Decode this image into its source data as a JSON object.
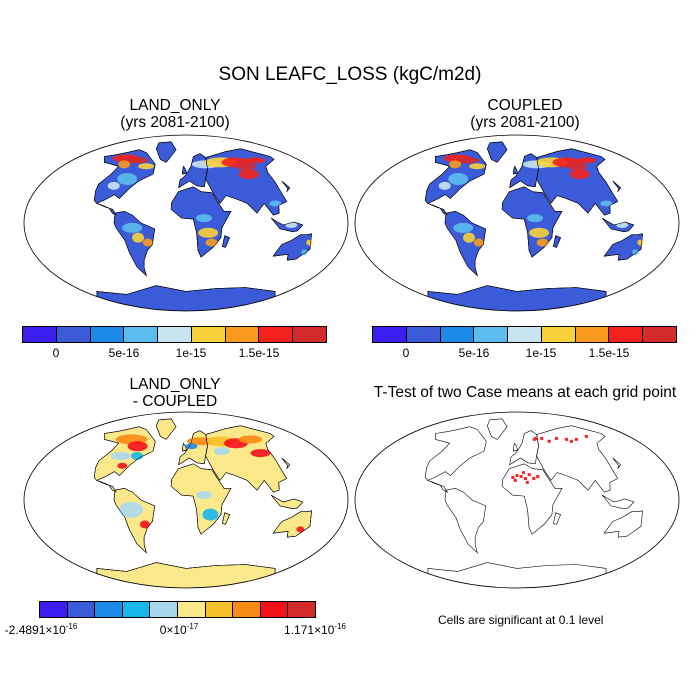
{
  "title": "SON LEAFC_LOSS (kgC/m2d)",
  "panels": {
    "land_only": {
      "line1": "LAND_ONLY",
      "line2": "(yrs 2081-2100)"
    },
    "coupled": {
      "line1": "COUPLED",
      "line2": "(yrs 2081-2100)"
    },
    "difference": {
      "line1": "LAND_ONLY",
      "line2": "- COUPLED"
    },
    "ttest": {
      "line1": "T-Test of two Case means at each grid point"
    }
  },
  "colorbar_top": {
    "colors": [
      "#3d1ef0",
      "#3b5bd8",
      "#1e8ae8",
      "#5cbcee",
      "#c8e4f0",
      "#f8d23c",
      "#f79a1e",
      "#f4211c",
      "#d42a2a"
    ],
    "labels": [
      "0",
      "5e-16",
      "1e-15",
      "1.5e-15"
    ]
  },
  "colorbar_diff": {
    "colors": [
      "#3d1ef0",
      "#3b5bd8",
      "#1e8ae8",
      "#16b8ec",
      "#a8d8ee",
      "#fbe88a",
      "#f8c028",
      "#f78a14",
      "#f4111a",
      "#d42a2a"
    ],
    "labels": [
      {
        "base": "-2.4891×10",
        "exp": "-16"
      },
      {
        "base": "0×10",
        "exp": "-17"
      },
      {
        "base": "1.171×10",
        "exp": "-16"
      }
    ]
  },
  "significance_note": "Cells are significant at 0.1 level",
  "map_colors": {
    "ocean": "#ffffff",
    "land_base": "#3b5bd8",
    "diff_base": "#fbe88a",
    "significant": "#ff1f1f"
  }
}
